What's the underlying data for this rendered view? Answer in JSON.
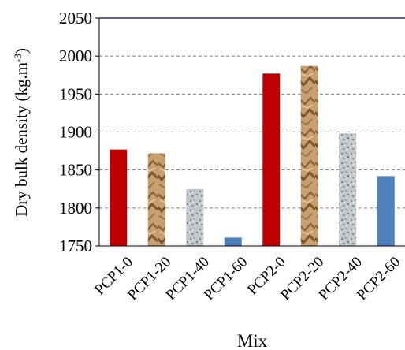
{
  "chart_data": {
    "type": "bar",
    "title": "",
    "xlabel": "Mix",
    "ylabel": {
      "main": "Dry bulk density (kg.m",
      "sup": "-3",
      "close": ")"
    },
    "ylim": [
      1750,
      2050
    ],
    "yticks": [
      "1750",
      "1800",
      "1850",
      "1900",
      "1950",
      "2000",
      "2050"
    ],
    "grid": true,
    "legend": "none",
    "categories": [
      "PCP1-0",
      "PCP1-20",
      "PCP1-40",
      "PCP1-60",
      "PCP2-0",
      "PCP2-20",
      "PCP2-40",
      "PCP2-60"
    ],
    "values": [
      1877,
      1872,
      1825,
      1761,
      1977,
      1987,
      1898,
      1842
    ],
    "bar_styles": [
      "red",
      "kraft",
      "granite",
      "blue",
      "red",
      "kraft",
      "granite",
      "blue"
    ],
    "colors": {
      "red": "#c00000",
      "kraft_base": "#c8a070",
      "kraft_dark": "#7a5530",
      "granite_base": "#b8bcc0",
      "granite_dark": "#7f858b",
      "blue": "#4f81bd",
      "top_line": "#1f3864",
      "grid": "#808080"
    }
  }
}
